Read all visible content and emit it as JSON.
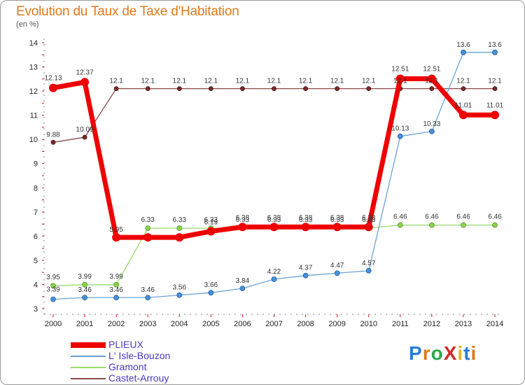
{
  "title": "Evolution du Taux de Taxe d'Habitation",
  "unit": "(en %)",
  "logo": {
    "text": "ProXiti",
    "colors": [
      "#2a7bd6",
      "#e0791a",
      "#2aa84a",
      "#d12a2a",
      "#e0b81a",
      "#2a7bd6",
      "#e0791a"
    ]
  },
  "chart_data": {
    "type": "line",
    "title": "Evolution du Taux de Taxe d'Habitation",
    "ylabel": "(en %)",
    "xlabel": "",
    "ylim": [
      3,
      14
    ],
    "yticks": [
      3,
      4,
      5,
      6,
      7,
      8,
      9,
      10,
      11,
      12,
      13,
      14
    ],
    "x": [
      "2000",
      "2001",
      "2002",
      "2003",
      "2004",
      "2005",
      "2006",
      "2007",
      "2008",
      "2009",
      "2010",
      "2011",
      "2012",
      "2013",
      "2014"
    ],
    "series": [
      {
        "name": "PLIEUX",
        "color": "#ee0000",
        "marker": "#ee0000",
        "markerStroke": "#ee0000",
        "width": 7,
        "markerSize": 6,
        "values": [
          12.13,
          12.37,
          5.95,
          5.95,
          5.95,
          6.2,
          6.38,
          6.38,
          6.38,
          6.38,
          6.38,
          12.51,
          12.51,
          11.01,
          11.01
        ],
        "labels": [
          "12.13",
          "12.37",
          "5.95",
          "",
          "",
          "",
          "",
          "",
          "",
          "",
          "",
          "12.51",
          "12.51",
          "11.01",
          "11.01"
        ]
      },
      {
        "name": "L' Isle-Bouzon",
        "color": "#6aa3d6",
        "marker": "#4a90d9",
        "markerStroke": "#1f5f99",
        "width": 1.3,
        "markerSize": 3.5,
        "values": [
          3.39,
          3.46,
          3.46,
          3.46,
          3.56,
          3.66,
          3.84,
          4.22,
          4.37,
          4.47,
          4.57,
          10.13,
          10.33,
          13.6,
          13.6
        ],
        "labels": [
          "3.39",
          "3.46",
          "3.46",
          "3.46",
          "3.56",
          "3.66",
          "3.84",
          "4.22",
          "4.37",
          "4.47",
          "4.57",
          "10.13",
          "10.33",
          "13.6",
          "13.6"
        ]
      },
      {
        "name": "Gramont",
        "color": "#9adb6a",
        "marker": "#8cd14f",
        "markerStroke": "#4f9a1f",
        "width": 1.3,
        "markerSize": 3.5,
        "values": [
          3.95,
          3.99,
          3.99,
          6.33,
          6.33,
          6.33,
          6.33,
          6.33,
          6.33,
          6.33,
          6.33,
          6.46,
          6.46,
          6.46,
          6.46
        ],
        "labels": [
          "3.95",
          "3.99",
          "3.99",
          "6.33",
          "6.33",
          "6.33",
          "6.33",
          "6.33",
          "6.33",
          "6.33",
          "6.33",
          "6.46",
          "6.46",
          "6.46",
          "6.46"
        ]
      },
      {
        "name": "Castet-Arrouy",
        "color": "#8a4a4a",
        "marker": "#7a2a2a",
        "markerStroke": "#4a1010",
        "width": 1.3,
        "markerSize": 3,
        "values": [
          9.88,
          10.09,
          12.1,
          12.1,
          12.1,
          12.1,
          12.1,
          12.1,
          12.1,
          12.1,
          12.1,
          12.1,
          12.1,
          12.1,
          12.1
        ],
        "labels": [
          "9.88",
          "10.09",
          "12.1",
          "12.1",
          "12.1",
          "12.1",
          "12.1",
          "12.1",
          "12.1",
          "12.1",
          "12.1",
          "12.1",
          "12.1",
          "12.1",
          "12.1"
        ]
      }
    ],
    "extra_labels": [
      {
        "series": 0,
        "index": 5,
        "text": "6.19"
      },
      {
        "series": 0,
        "index": 6,
        "text": "6.38"
      },
      {
        "series": 0,
        "index": 7,
        "text": "6.38"
      },
      {
        "series": 0,
        "index": 8,
        "text": "6.38"
      },
      {
        "series": 0,
        "index": 9,
        "text": "6.38"
      },
      {
        "series": 0,
        "index": 10,
        "text": "6.38"
      }
    ],
    "grid": false,
    "legend": "bottom-left"
  }
}
